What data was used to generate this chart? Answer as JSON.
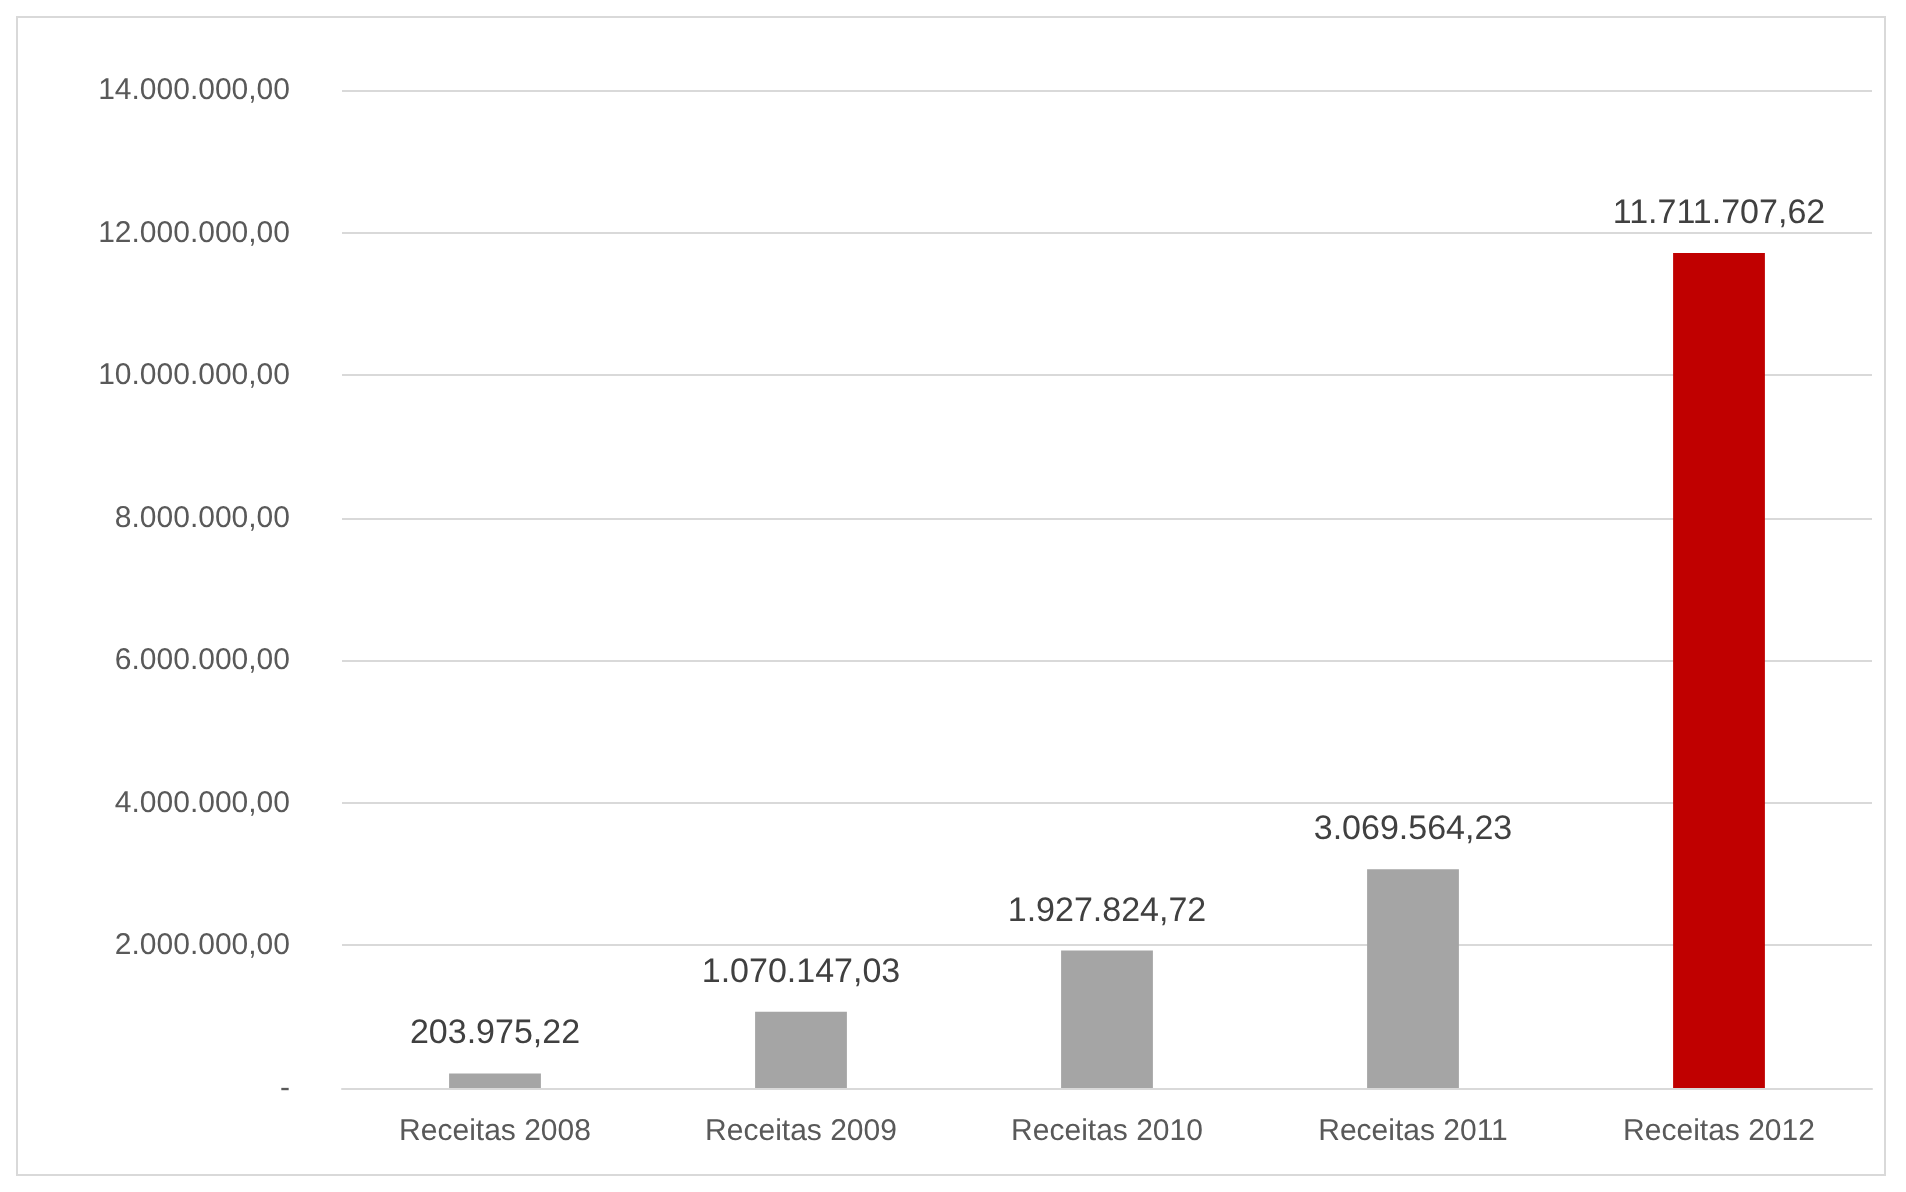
{
  "chart_data": {
    "type": "bar",
    "categories": [
      "Receitas 2008",
      "Receitas 2009",
      "Receitas 2010",
      "Receitas 2011",
      "Receitas 2012"
    ],
    "values": [
      203975.22,
      1070147.03,
      1927824.72,
      3069564.23,
      11711707.62
    ],
    "colors": [
      "#a5a5a5",
      "#a5a5a5",
      "#a5a5a5",
      "#a5a5a5",
      "#c00000"
    ],
    "value_labels": [
      "203.975,22",
      "1.070.147,03",
      "1.927.824,72",
      "3.069.564,23",
      "11.711.707,62"
    ],
    "ylim": [
      0,
      14000000
    ],
    "yticks": [
      {
        "value": 0,
        "label": "-"
      },
      {
        "value": 2000000,
        "label": "2.000.000,00"
      },
      {
        "value": 4000000,
        "label": "4.000.000,00"
      },
      {
        "value": 6000000,
        "label": "6.000.000,00"
      },
      {
        "value": 8000000,
        "label": "8.000.000,00"
      },
      {
        "value": 10000000,
        "label": "10.000.000,00"
      },
      {
        "value": 12000000,
        "label": "12.000.000,00"
      },
      {
        "value": 14000000,
        "label": "14.000.000,00"
      }
    ],
    "grid": "y"
  }
}
